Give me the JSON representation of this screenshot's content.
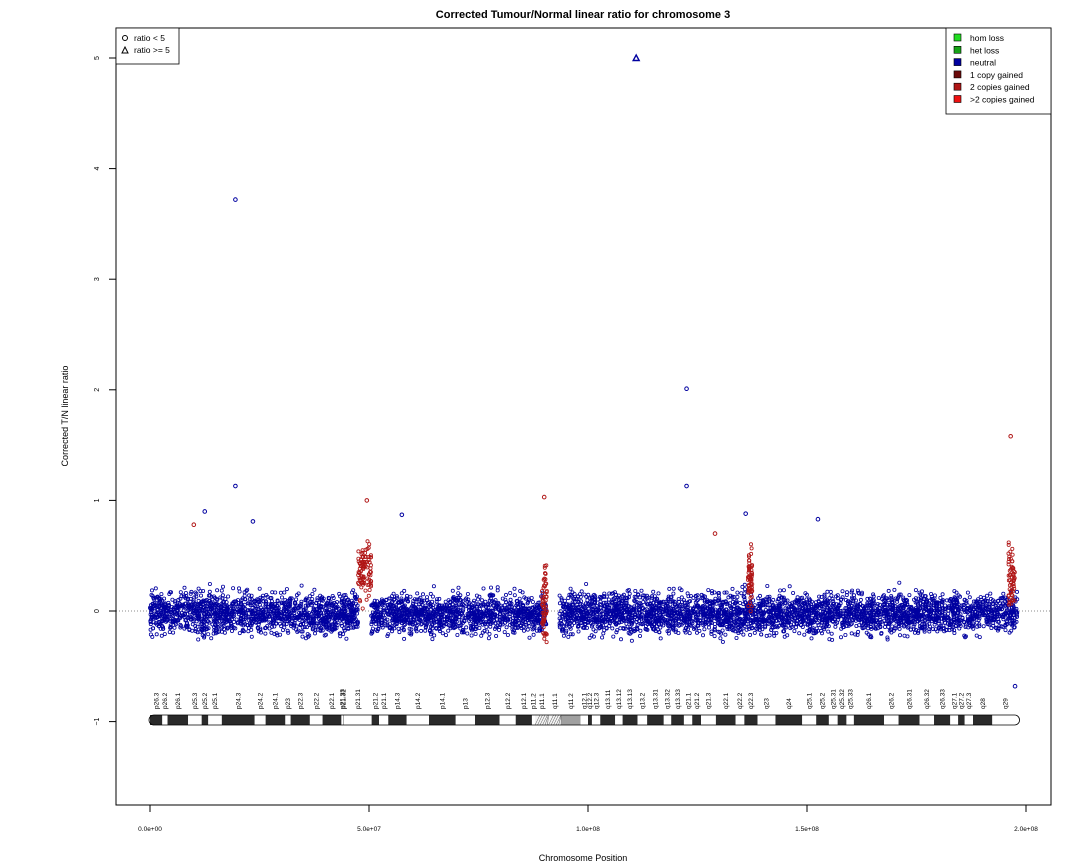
{
  "chart_data": {
    "type": "scatter",
    "title": "Corrected Tumour/Normal linear ratio for chromosome  3",
    "xlabel": "Chromosome Position",
    "ylabel": "Corrected T/N linear ratio",
    "xlim": [
      0,
      200000000
    ],
    "ylim": [
      -1.8,
      5.3
    ],
    "x_ticks": [
      0,
      50000000,
      100000000,
      150000000,
      200000000
    ],
    "x_tick_labels": [
      "0.0e+00",
      "5.0e+07",
      "1.0e+08",
      "1.5e+08",
      "2.0e+08"
    ],
    "y_ticks": [
      -1,
      0,
      1,
      2,
      3,
      4,
      5
    ],
    "y_tick_labels": [
      "−1",
      "0",
      "1",
      "2",
      "3",
      "4",
      "5"
    ],
    "reference_line_y": 0,
    "grid": false,
    "shape_legend": {
      "placement": "top-left",
      "entries": [
        {
          "label": "ratio < 5",
          "shape": "circle"
        },
        {
          "label": "ratio >= 5",
          "shape": "triangle"
        }
      ]
    },
    "legend": {
      "placement": "top-right",
      "entries": [
        {
          "label": "hom loss",
          "color": "#22dd22"
        },
        {
          "label": "het loss",
          "color": "#17a317"
        },
        {
          "label": "neutral",
          "color": "#0000a0"
        },
        {
          "label": "1 copy gained",
          "color": "#6b0a0a"
        },
        {
          "label": "2 copies gained",
          "color": "#b01616"
        },
        {
          "label": ">2 copies gained",
          "color": "#ee1111"
        }
      ]
    },
    "series": [
      {
        "name": "neutral",
        "color": "#0000a0",
        "segments": [
          {
            "x_range": [
              0,
              47500000
            ],
            "center": -0.02,
            "spread": 0.18
          },
          {
            "x_range": [
              50500000,
              90500000
            ],
            "center": -0.03,
            "spread": 0.17
          },
          {
            "x_range": [
              93500000,
              198000000
            ],
            "center": -0.02,
            "spread": 0.18
          }
        ],
        "points": [
          {
            "x": 19500000,
            "y": 3.72
          },
          {
            "x": 19500000,
            "y": 1.13
          },
          {
            "x": 122500000,
            "y": 2.01
          },
          {
            "x": 122500000,
            "y": 1.13
          },
          {
            "x": 12500000,
            "y": 0.9
          },
          {
            "x": 57500000,
            "y": 0.87
          },
          {
            "x": 152500000,
            "y": 0.83
          },
          {
            "x": 23500000,
            "y": 0.81
          },
          {
            "x": 136000000,
            "y": 0.88
          },
          {
            "x": 197500000,
            "y": -0.68
          }
        ]
      },
      {
        "name": "gained",
        "color": "#b01616",
        "segments": [
          {
            "x_range": [
              47500000,
              50500000
            ],
            "center": 0.35,
            "spread": 0.3
          },
          {
            "x_range": [
              89500000,
              90600000
            ],
            "center": 0.1,
            "spread": 0.35
          },
          {
            "x_range": [
              136500000,
              137500000
            ],
            "center": 0.3,
            "spread": 0.3
          },
          {
            "x_range": [
              196000000,
              197500000
            ],
            "center": 0.3,
            "spread": 0.3
          }
        ],
        "points": [
          {
            "x": 49500000,
            "y": 1.0
          },
          {
            "x": 90000000,
            "y": 1.03
          },
          {
            "x": 196500000,
            "y": 1.58
          },
          {
            "x": 10000000,
            "y": 0.78
          },
          {
            "x": 129000000,
            "y": 0.7
          }
        ]
      },
      {
        "name": "ratio >= 5",
        "color": "#0000a0",
        "points": [
          {
            "x": 111000000,
            "y": 5.0
          }
        ]
      }
    ],
    "ideogram": {
      "bands": [
        {
          "name": "p26.3",
          "start": 0,
          "end": 2800000,
          "stain": "gpos50"
        },
        {
          "name": "p26.2",
          "start": 2800000,
          "end": 4000000,
          "stain": "gneg"
        },
        {
          "name": "p26.1",
          "start": 4000000,
          "end": 8700000,
          "stain": "gpos50"
        },
        {
          "name": "p25.3",
          "start": 8700000,
          "end": 11800000,
          "stain": "gneg"
        },
        {
          "name": "p25.2",
          "start": 11800000,
          "end": 13300000,
          "stain": "gpos25"
        },
        {
          "name": "p25.1",
          "start": 13300000,
          "end": 16400000,
          "stain": "gneg"
        },
        {
          "name": "p24.3",
          "start": 16400000,
          "end": 23900000,
          "stain": "gpos100"
        },
        {
          "name": "p24.2",
          "start": 23900000,
          "end": 26400000,
          "stain": "gneg"
        },
        {
          "name": "p24.1",
          "start": 26400000,
          "end": 30900000,
          "stain": "gpos75"
        },
        {
          "name": "p23",
          "start": 30900000,
          "end": 32100000,
          "stain": "gneg"
        },
        {
          "name": "p22.3",
          "start": 32100000,
          "end": 36500000,
          "stain": "gpos50"
        },
        {
          "name": "p22.2",
          "start": 36500000,
          "end": 39400000,
          "stain": "gneg"
        },
        {
          "name": "p22.1",
          "start": 39400000,
          "end": 43700000,
          "stain": "gpos75"
        },
        {
          "name": "p21.33",
          "start": 43700000,
          "end": 44100000,
          "stain": "gneg"
        },
        {
          "name": "p21.32",
          "start": 44100000,
          "end": 44200000,
          "stain": "gpos50"
        },
        {
          "name": "p21.31",
          "start": 44200000,
          "end": 50600000,
          "stain": "gneg"
        },
        {
          "name": "p21.2",
          "start": 50600000,
          "end": 52300000,
          "stain": "gpos25"
        },
        {
          "name": "p21.1",
          "start": 52300000,
          "end": 54400000,
          "stain": "gneg"
        },
        {
          "name": "p14.3",
          "start": 54400000,
          "end": 58600000,
          "stain": "gpos50"
        },
        {
          "name": "p14.2",
          "start": 58600000,
          "end": 63700000,
          "stain": "gneg"
        },
        {
          "name": "p14.1",
          "start": 63700000,
          "end": 69800000,
          "stain": "gpos50"
        },
        {
          "name": "p13",
          "start": 69800000,
          "end": 74200000,
          "stain": "gneg"
        },
        {
          "name": "p12.3",
          "start": 74200000,
          "end": 79800000,
          "stain": "gpos75"
        },
        {
          "name": "p12.2",
          "start": 79800000,
          "end": 83500000,
          "stain": "gneg"
        },
        {
          "name": "p12.1",
          "start": 83500000,
          "end": 87200000,
          "stain": "gpos75"
        },
        {
          "name": "p11.2",
          "start": 87200000,
          "end": 87900000,
          "stain": "gneg"
        },
        {
          "name": "p11.1",
          "start": 87900000,
          "end": 91000000,
          "stain": "acen"
        },
        {
          "name": "q11.1",
          "start": 91000000,
          "end": 93900000,
          "stain": "acen"
        },
        {
          "name": "q11.2",
          "start": 93900000,
          "end": 98300000,
          "stain": "gvar"
        },
        {
          "name": "q12.1",
          "start": 98300000,
          "end": 100000000,
          "stain": "gneg"
        },
        {
          "name": "q12.2",
          "start": 100000000,
          "end": 100900000,
          "stain": "gpos25"
        },
        {
          "name": "q12.3",
          "start": 100900000,
          "end": 102800000,
          "stain": "gneg"
        },
        {
          "name": "q13.11",
          "start": 102800000,
          "end": 106200000,
          "stain": "gpos75"
        },
        {
          "name": "q13.12",
          "start": 106200000,
          "end": 107900000,
          "stain": "gneg"
        },
        {
          "name": "q13.13",
          "start": 107900000,
          "end": 111300000,
          "stain": "gpos50"
        },
        {
          "name": "q13.2",
          "start": 111300000,
          "end": 113500000,
          "stain": "gneg"
        },
        {
          "name": "q13.31",
          "start": 113500000,
          "end": 117300000,
          "stain": "gpos100"
        },
        {
          "name": "q13.32",
          "start": 117300000,
          "end": 119000000,
          "stain": "gneg"
        },
        {
          "name": "q13.33",
          "start": 119000000,
          "end": 121900000,
          "stain": "gpos75"
        },
        {
          "name": "q21.1",
          "start": 121900000,
          "end": 123800000,
          "stain": "gneg"
        },
        {
          "name": "q21.2",
          "start": 123800000,
          "end": 125800000,
          "stain": "gpos25"
        },
        {
          "name": "q21.3",
          "start": 125800000,
          "end": 129200000,
          "stain": "gneg"
        },
        {
          "name": "q22.1",
          "start": 129200000,
          "end": 133700000,
          "stain": "gpos25"
        },
        {
          "name": "q22.2",
          "start": 133700000,
          "end": 135700000,
          "stain": "gneg"
        },
        {
          "name": "q22.3",
          "start": 135700000,
          "end": 138700000,
          "stain": "gpos25"
        },
        {
          "name": "q23",
          "start": 138700000,
          "end": 142800000,
          "stain": "gneg"
        },
        {
          "name": "q24",
          "start": 142800000,
          "end": 148900000,
          "stain": "gpos100"
        },
        {
          "name": "q25.1",
          "start": 148900000,
          "end": 152100000,
          "stain": "gneg"
        },
        {
          "name": "q25.2",
          "start": 152100000,
          "end": 155000000,
          "stain": "gpos50"
        },
        {
          "name": "q25.31",
          "start": 155000000,
          "end": 157000000,
          "stain": "gneg"
        },
        {
          "name": "q25.32",
          "start": 157000000,
          "end": 159000000,
          "stain": "gpos50"
        },
        {
          "name": "q25.33",
          "start": 159000000,
          "end": 160700000,
          "stain": "gneg"
        },
        {
          "name": "q26.1",
          "start": 160700000,
          "end": 167600000,
          "stain": "gpos100"
        },
        {
          "name": "q26.2",
          "start": 167600000,
          "end": 170900000,
          "stain": "gneg"
        },
        {
          "name": "q26.31",
          "start": 170900000,
          "end": 175700000,
          "stain": "gpos75"
        },
        {
          "name": "q26.32",
          "start": 175700000,
          "end": 179000000,
          "stain": "gneg"
        },
        {
          "name": "q26.33",
          "start": 179000000,
          "end": 182700000,
          "stain": "gpos75"
        },
        {
          "name": "q27.1",
          "start": 182700000,
          "end": 184500000,
          "stain": "gneg"
        },
        {
          "name": "q27.2",
          "start": 184500000,
          "end": 186000000,
          "stain": "gpos25"
        },
        {
          "name": "q27.3",
          "start": 186000000,
          "end": 187900000,
          "stain": "gneg"
        },
        {
          "name": "q28",
          "start": 187900000,
          "end": 192300000,
          "stain": "gpos75"
        },
        {
          "name": "q29",
          "start": 192300000,
          "end": 198300000,
          "stain": "gneg"
        }
      ]
    }
  }
}
